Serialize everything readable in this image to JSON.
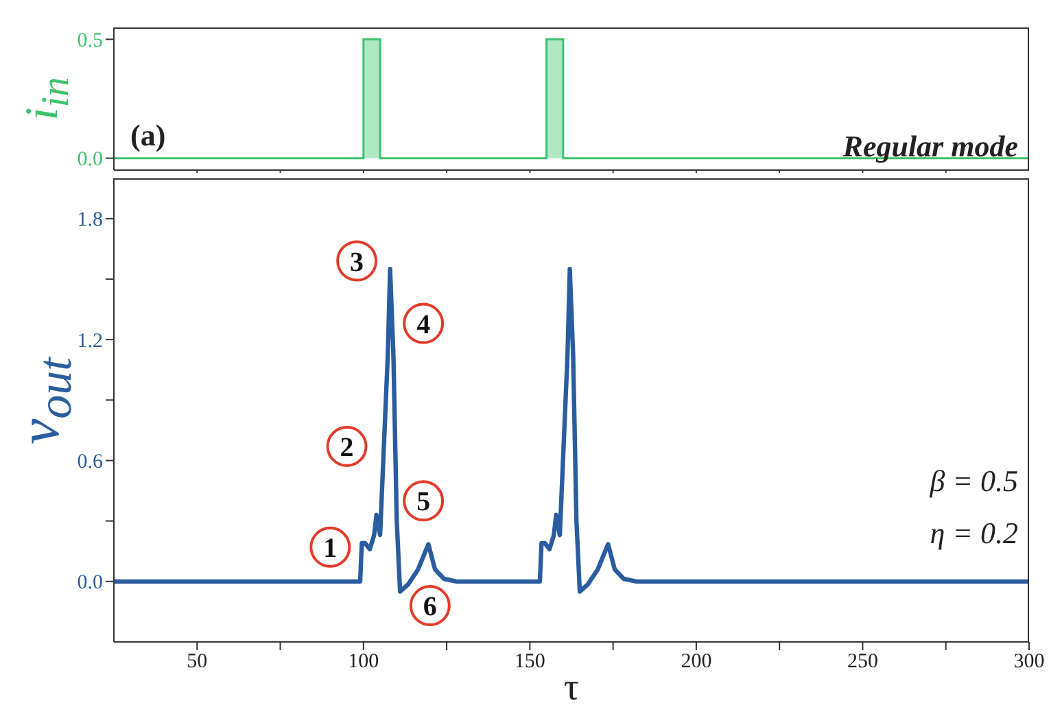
{
  "chart_data": [
    {
      "type": "area",
      "ylabel": "i$_{in}$",
      "tick_labels": "y",
      "xlim": [
        25,
        300
      ],
      "ylim": [
        -0.05,
        0.55
      ],
      "yticks": [
        {
          "value": 0,
          "label": "0.0"
        },
        {
          "value": 0.5,
          "label": "0.5"
        }
      ],
      "xticks": [
        {
          "value": 50,
          "label": null
        },
        {
          "value": 75,
          "label": null
        },
        {
          "value": 100,
          "label": null
        },
        {
          "value": 125,
          "label": null
        },
        {
          "value": 150,
          "label": null
        },
        {
          "value": 175,
          "label": null
        },
        {
          "value": 200,
          "label": null
        },
        {
          "value": 225,
          "label": null
        },
        {
          "value": 250,
          "label": null
        },
        {
          "value": 275,
          "label": null
        }
      ],
      "annotations": [
        "(a)",
        "Regular mode"
      ],
      "series": [
        {
          "color": "#3cc36a",
          "x": [
            25,
            100,
            100,
            105,
            105,
            155,
            155,
            160,
            160,
            300
          ],
          "values": [
            0,
            0,
            0.5,
            0.5,
            0,
            0,
            0.5,
            0.5,
            0,
            0
          ]
        }
      ]
    },
    {
      "type": "line",
      "xlabel": "τ",
      "ylabel": "v$_{out}$",
      "xlim": [
        25,
        300
      ],
      "ylim": [
        -0.3,
        2.0
      ],
      "xticks": [
        50,
        {
          "value": 75,
          "label": null
        },
        100,
        {
          "value": 125,
          "label": null
        },
        150,
        {
          "value": 175,
          "label": null
        },
        200,
        {
          "value": 225,
          "label": null
        },
        250,
        {
          "value": 275,
          "label": null
        },
        300
      ],
      "yticks": [
        {
          "value": 0,
          "label": "0.0"
        },
        {
          "value": 0.3,
          "label": null
        },
        {
          "value": 0.6,
          "label": "0.6"
        },
        {
          "value": 0.9,
          "label": null
        },
        {
          "value": 1.2,
          "label": "1.2"
        },
        {
          "value": 1.5,
          "label": null
        },
        {
          "value": 1.8,
          "label": "1.8"
        }
      ],
      "annotations": [
        {
          "text": "1",
          "x": 90,
          "y": 0.17
        },
        {
          "text": "2",
          "x": 95,
          "y": 0.67
        },
        {
          "text": "3",
          "x": 98,
          "y": 1.59
        },
        {
          "text": "4",
          "x": 118,
          "y": 1.28
        },
        {
          "text": "5",
          "x": 118,
          "y": 0.4
        },
        {
          "text": "6",
          "x": 120,
          "y": -0.12
        },
        "β = 0.5",
        "η = 0.2"
      ],
      "series": [
        {
          "color": "#2a5d9f",
          "x": [
            25,
            99,
            99.5,
            100.5,
            101.9,
            103.2,
            103.9,
            105,
            106,
            107.3,
            108,
            109,
            110,
            111,
            113.4,
            116.4,
            119.5,
            121.5,
            124.2,
            128,
            153,
            153.5,
            154.5,
            155.9,
            157.2,
            157.9,
            159,
            160,
            161.3,
            162,
            163,
            164,
            165,
            167.4,
            170.4,
            173.5,
            175.5,
            178.2,
            182,
            300
          ],
          "values": [
            0,
            0,
            0.19,
            0.19,
            0.16,
            0.23,
            0.33,
            0.23,
            0.62,
            1.12,
            1.55,
            1.12,
            0.3,
            -0.05,
            -0.015,
            0.06,
            0.185,
            0.06,
            0.013,
            0,
            0,
            0.19,
            0.19,
            0.16,
            0.23,
            0.33,
            0.23,
            0.62,
            1.12,
            1.55,
            1.12,
            0.3,
            -0.05,
            -0.015,
            0.06,
            0.185,
            0.06,
            0.013,
            0,
            0
          ]
        }
      ]
    }
  ]
}
